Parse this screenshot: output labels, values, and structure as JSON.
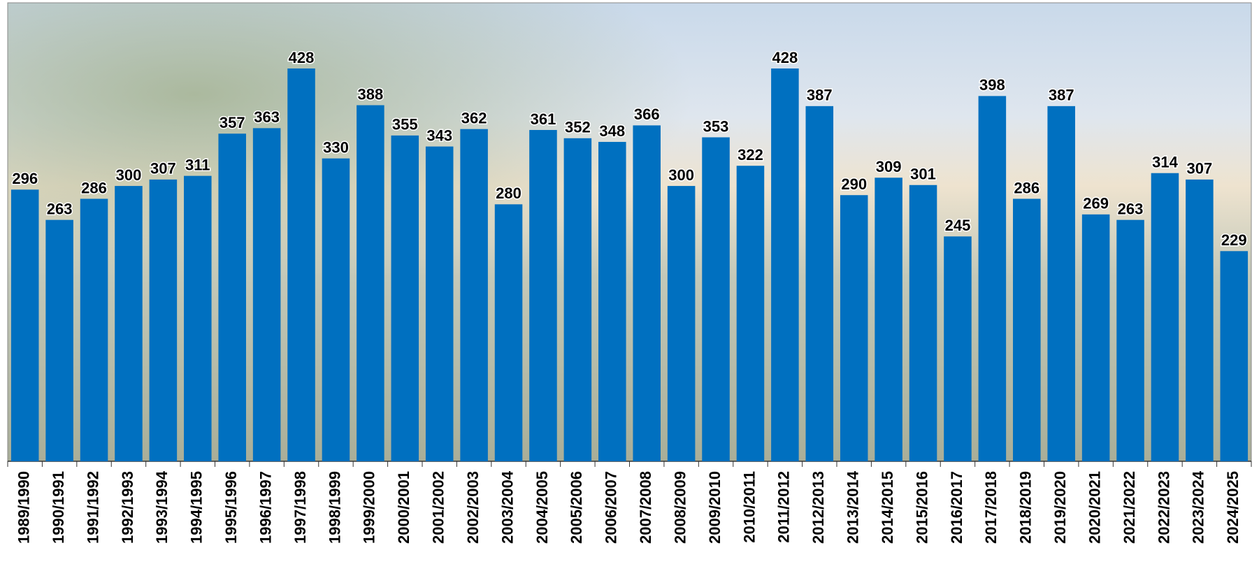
{
  "chart_data": {
    "type": "bar",
    "categories": [
      "1989/1990",
      "1990/1991",
      "1991/1992",
      "1992/1993",
      "1993/1994",
      "1994/1995",
      "1995/1996",
      "1996/1997",
      "1997/1998",
      "1998/1999",
      "1999/2000",
      "2000/2001",
      "2001/2002",
      "2002/2003",
      "2003/2004",
      "2004/2005",
      "2005/2006",
      "2006/2007",
      "2007/2008",
      "2008/2009",
      "2009/2010",
      "2010/2011",
      "2011/2012",
      "2012/2013",
      "2013/2014",
      "2014/2015",
      "2015/2016",
      "2016/2017",
      "2017/2018",
      "2018/2019",
      "2019/2020",
      "2020/2021",
      "2021/2022",
      "2022/2023",
      "2023/2024",
      "2024/2025"
    ],
    "values": [
      296,
      263,
      286,
      300,
      307,
      311,
      357,
      363,
      428,
      330,
      388,
      355,
      343,
      362,
      280,
      361,
      352,
      348,
      366,
      300,
      353,
      322,
      428,
      387,
      290,
      309,
      301,
      245,
      398,
      286,
      387,
      269,
      263,
      314,
      307,
      229
    ],
    "color": "#0070c0"
  }
}
